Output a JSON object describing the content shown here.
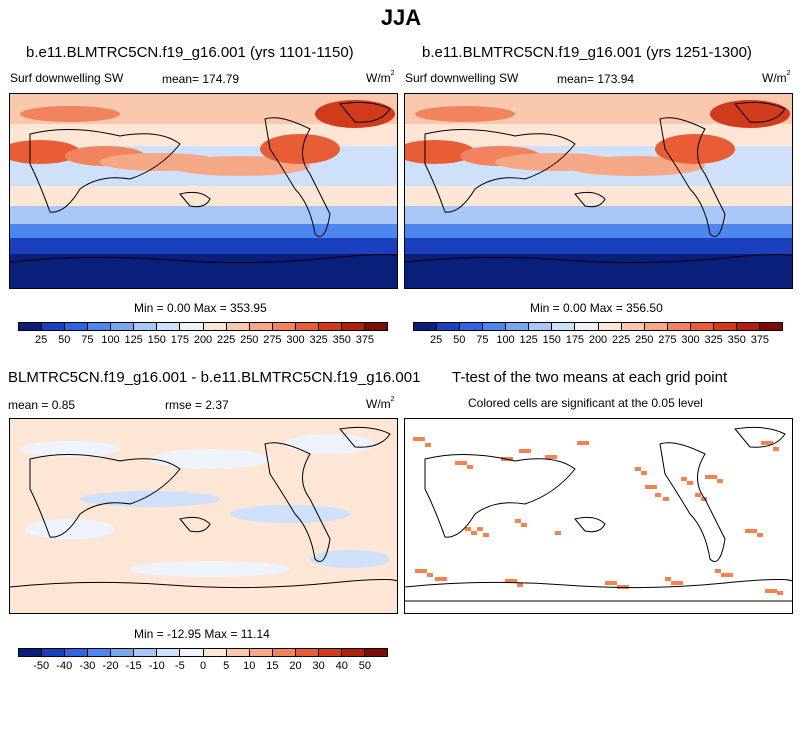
{
  "figure_title": "JJA",
  "panels": [
    {
      "title": "b.e11.BLMTRC5CN.f19_g16.001 (yrs 1101-1150)",
      "variable": "Surf downwelling SW",
      "mean_label": "mean= 174.79",
      "units_base": "W/m",
      "units_exp": "2",
      "minmax": "Min =   0.00 Max = 353.95"
    },
    {
      "title": "b.e11.BLMTRC5CN.f19_g16.001 (yrs 1251-1300)",
      "variable": "Surf downwelling SW",
      "mean_label": "mean= 173.94",
      "units_base": "W/m",
      "units_exp": "2",
      "minmax": "Min =   0.00 Max = 356.50"
    },
    {
      "title": "BLMTRC5CN.f19_g16.001 - b.e11.BLMTRC5CN.f19_g16.001",
      "mean_label": "mean =   0.85",
      "rmse_label": "rmse =   2.37",
      "units_base": "W/m",
      "units_exp": "2",
      "minmax": "Min = -12.95 Max =  11.14"
    },
    {
      "title": "T-test of the two means at each grid point",
      "subtitle": "Colored cells are significant at the 0.05 level"
    }
  ],
  "colorbar_abs": {
    "labels": [
      "25",
      "50",
      "75",
      "100",
      "125",
      "150",
      "175",
      "200",
      "225",
      "250",
      "275",
      "300",
      "325",
      "350",
      "375"
    ],
    "colors": [
      "#0a1f7a",
      "#1a3fbf",
      "#2f63e0",
      "#4d86ec",
      "#7aa6f2",
      "#a8c6f6",
      "#cfe0fa",
      "#eef3fb",
      "#fde6d6",
      "#f9c8ad",
      "#f6a886",
      "#f1845e",
      "#e85d36",
      "#d23a1c",
      "#b0200e",
      "#7d0b05"
    ]
  },
  "colorbar_diff": {
    "labels": [
      "-50",
      "-40",
      "-30",
      "-20",
      "-15",
      "-10",
      "-5",
      "0",
      "5",
      "10",
      "15",
      "20",
      "30",
      "40",
      "50"
    ],
    "colors": [
      "#0a1f7a",
      "#1a3fbf",
      "#2f63e0",
      "#4d86ec",
      "#7aa6f2",
      "#a8c6f6",
      "#cfe0fa",
      "#eef3fb",
      "#fde6d6",
      "#f9c8ad",
      "#f6a886",
      "#f1845e",
      "#e85d36",
      "#d23a1c",
      "#b0200e",
      "#7d0b05"
    ]
  },
  "ttest_color": "#f4834f"
}
